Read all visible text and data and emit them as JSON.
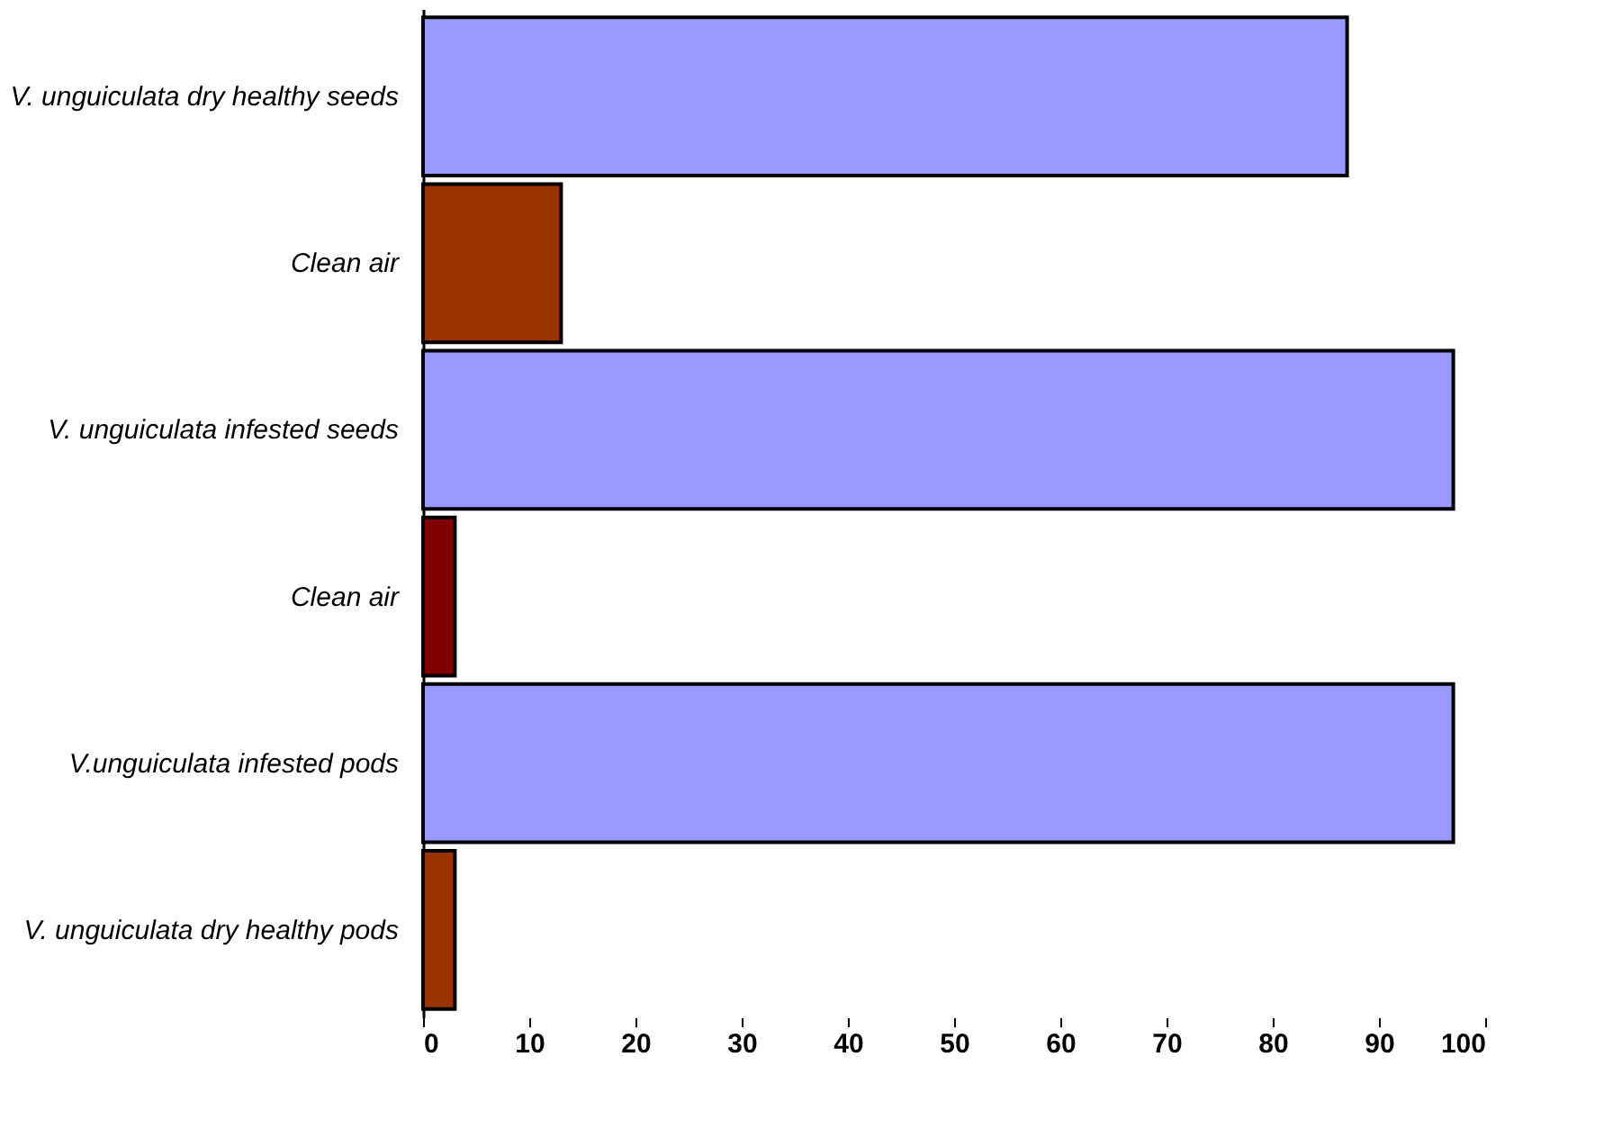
{
  "chart_data": {
    "type": "bar",
    "orientation": "horizontal",
    "categories": [
      "V. unguiculata dry healthy seeds",
      "Clean air",
      "V. unguiculata infested seeds",
      "Clean air",
      "V.unguiculata infested pods",
      "V. unguiculata dry healthy pods"
    ],
    "values": [
      87,
      13,
      97,
      3,
      97,
      3
    ],
    "colors": [
      "#9999ff",
      "#993300",
      "#9999ff",
      "#800000",
      "#9999ff",
      "#993300"
    ],
    "xlim": [
      0,
      100
    ],
    "xticks": [
      0,
      10,
      20,
      30,
      40,
      50,
      60,
      70,
      80,
      90,
      100
    ],
    "grid": false
  }
}
